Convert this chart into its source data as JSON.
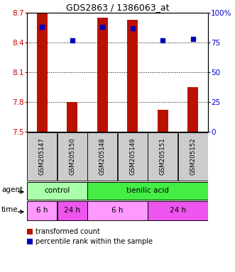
{
  "title": "GDS2863 / 1386063_at",
  "samples": [
    "GSM205147",
    "GSM205150",
    "GSM205148",
    "GSM205149",
    "GSM205151",
    "GSM205152"
  ],
  "bar_values": [
    8.7,
    7.8,
    8.65,
    8.63,
    7.72,
    7.95
  ],
  "percentile_values": [
    88,
    77,
    88,
    87,
    77,
    78
  ],
  "y_min": 7.5,
  "y_max": 8.7,
  "y_ticks_left": [
    7.5,
    7.8,
    8.1,
    8.4,
    8.7
  ],
  "y_ticks_right": [
    0,
    25,
    50,
    75,
    100
  ],
  "bar_color": "#bb1100",
  "dot_color": "#0000bb",
  "agent_labels": [
    {
      "text": "control",
      "span": [
        0,
        2
      ],
      "color": "#aaffaa"
    },
    {
      "text": "tienilic acid",
      "span": [
        2,
        6
      ],
      "color": "#44ee44"
    }
  ],
  "time_labels": [
    {
      "text": "6 h",
      "span": [
        0,
        1
      ],
      "color": "#ff99ff"
    },
    {
      "text": "24 h",
      "span": [
        1,
        2
      ],
      "color": "#ee55ee"
    },
    {
      "text": "6 h",
      "span": [
        2,
        4
      ],
      "color": "#ff99ff"
    },
    {
      "text": "24 h",
      "span": [
        4,
        6
      ],
      "color": "#ee55ee"
    }
  ],
  "legend_bar_color": "#bb1100",
  "legend_dot_color": "#0000bb",
  "legend_text1": "transformed count",
  "legend_text2": "percentile rank within the sample",
  "left_label_color": "#cc0000",
  "right_label_color": "#0000cc",
  "sample_box_color": "#cccccc",
  "bar_width": 0.35
}
